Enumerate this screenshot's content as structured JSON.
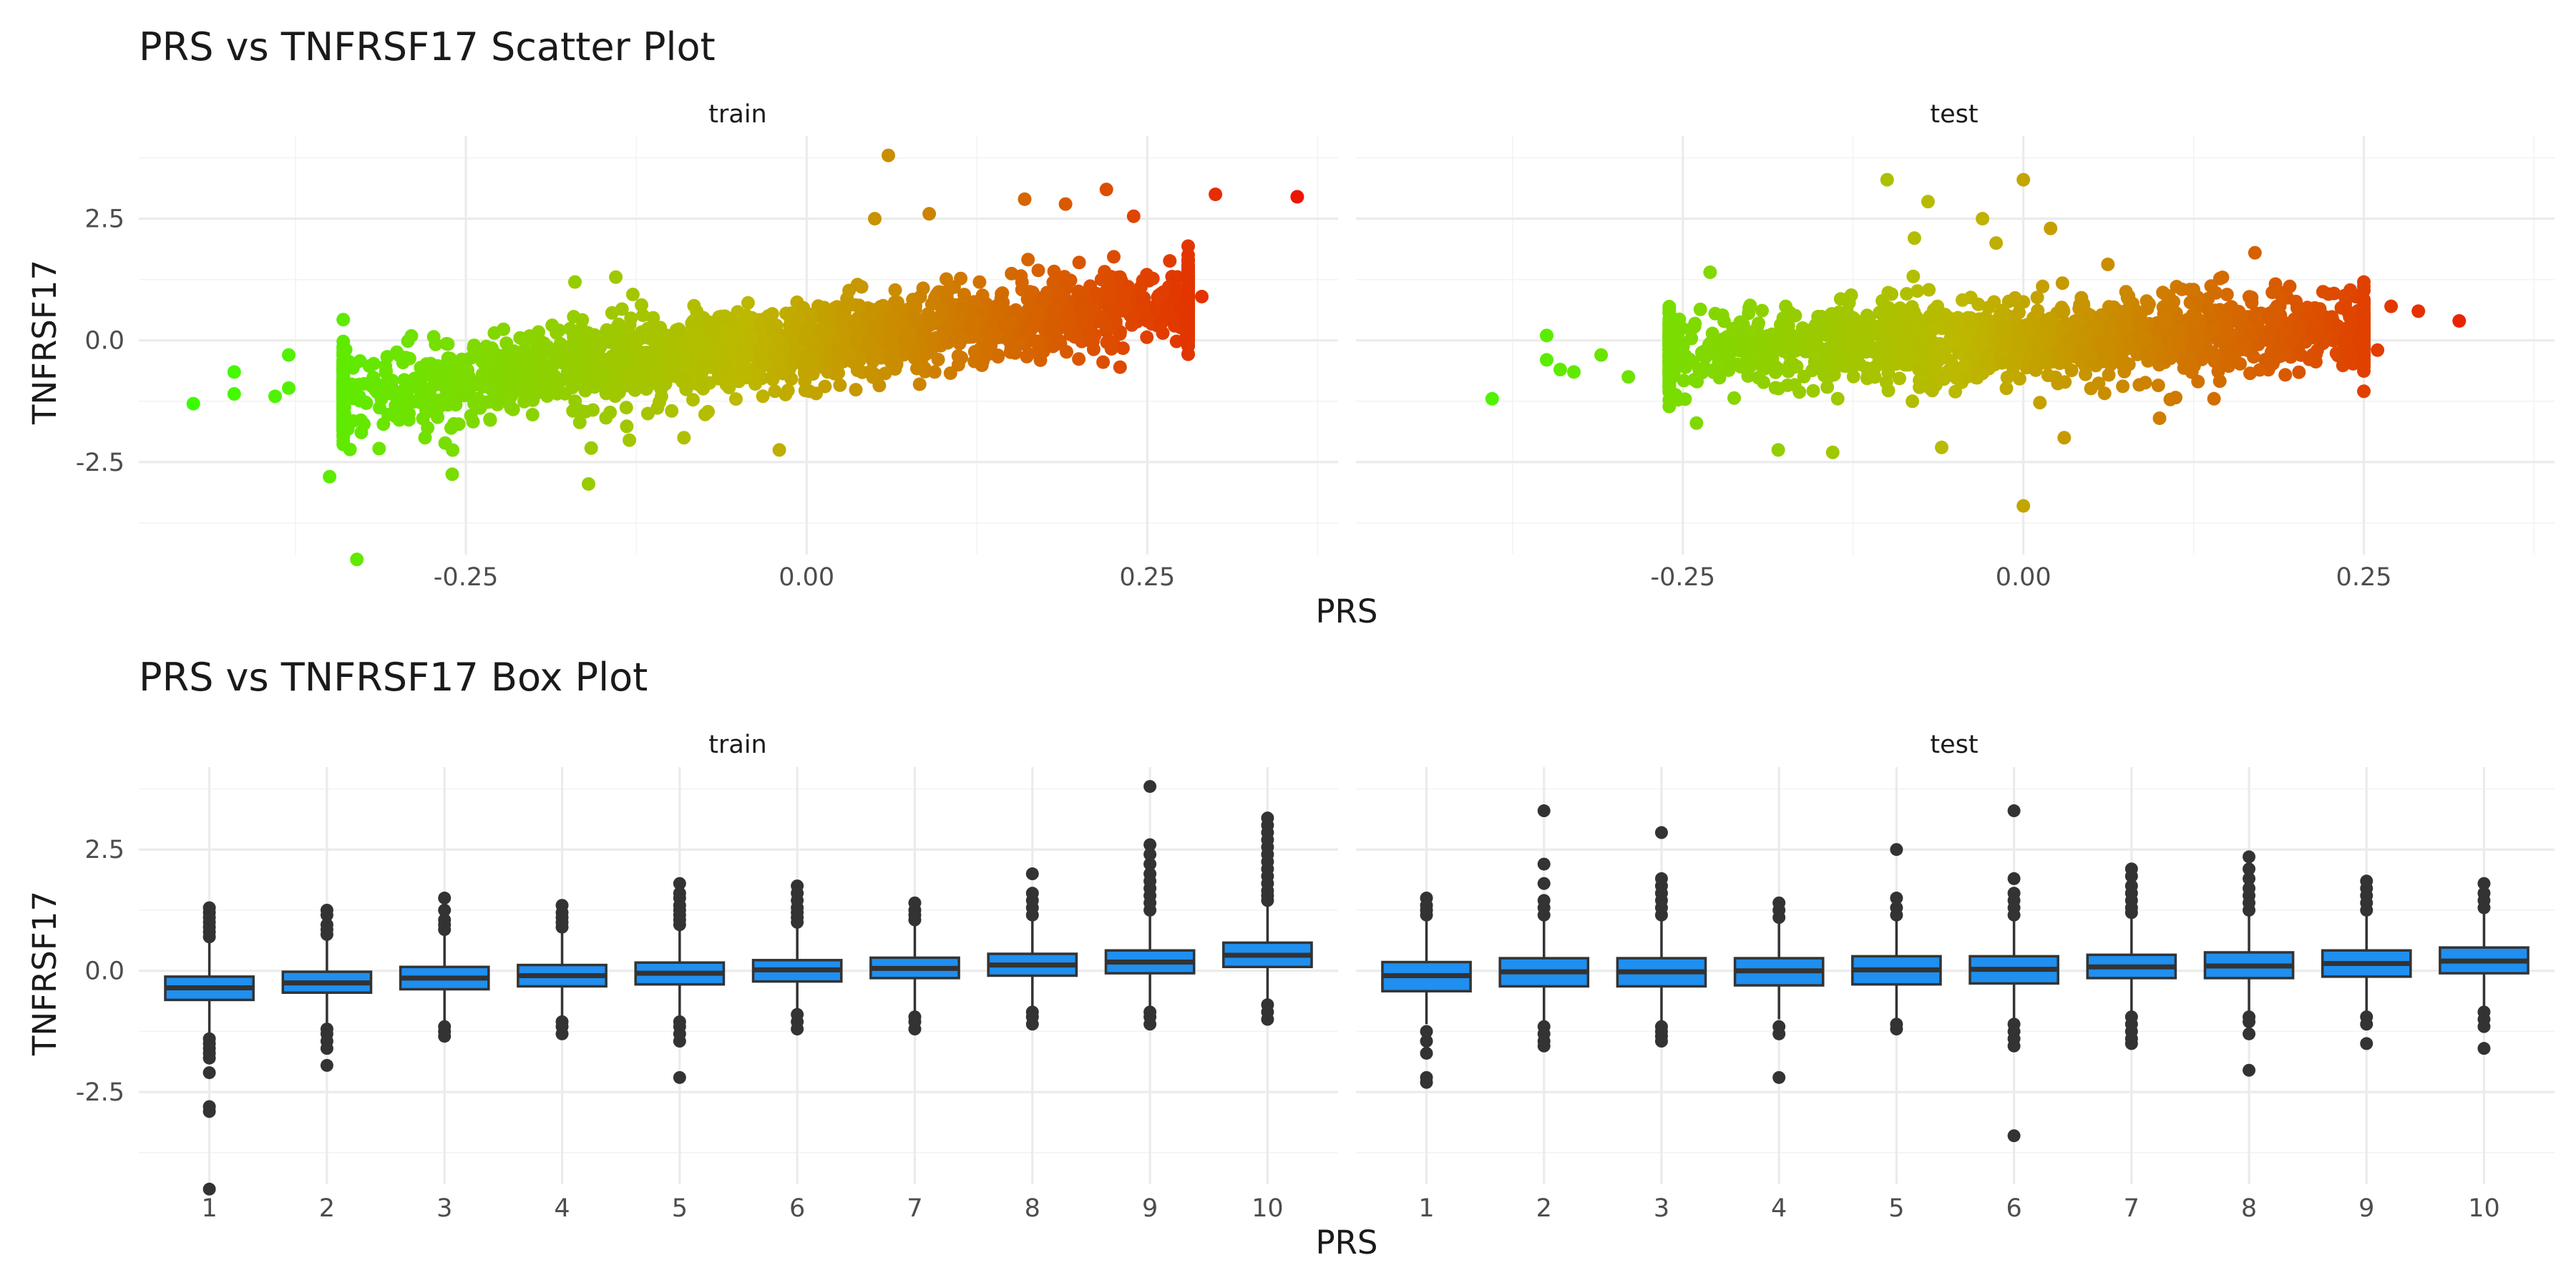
{
  "chart_data": [
    {
      "type": "scatter",
      "title": "PRS vs TNFRSF17 Scatter Plot",
      "xlabel": "PRS",
      "ylabel": "TNFRSF17",
      "color_scale": {
        "low": "#39ff00",
        "mid": "#bdb800",
        "high": "#ee1100"
      },
      "facets": [
        {
          "name": "train",
          "xlim": [
            -0.49,
            0.39
          ],
          "ylim": [
            -4.4,
            4.2
          ],
          "xticks": [
            -0.25,
            0.0,
            0.25
          ],
          "yticks": [
            -2.5,
            0.0,
            2.5
          ],
          "cloud": {
            "x_min": -0.34,
            "x_max": 0.28,
            "slope": 3.0,
            "intercept": -0.05,
            "spread": 0.42,
            "n": 2200
          },
          "points": [
            {
              "x": -0.45,
              "y": -1.3
            },
            {
              "x": -0.42,
              "y": -0.65
            },
            {
              "x": -0.42,
              "y": -1.1
            },
            {
              "x": -0.39,
              "y": -1.15
            },
            {
              "x": -0.38,
              "y": -0.98
            },
            {
              "x": -0.38,
              "y": -0.3
            },
            {
              "x": -0.33,
              "y": -4.5
            },
            {
              "x": -0.35,
              "y": -2.8
            },
            {
              "x": -0.26,
              "y": -2.75
            },
            {
              "x": -0.28,
              "y": -2.0
            },
            {
              "x": -0.16,
              "y": -2.95
            },
            {
              "x": -0.13,
              "y": -2.05
            },
            {
              "x": -0.09,
              "y": -2.0
            },
            {
              "x": -0.02,
              "y": -2.25
            },
            {
              "x": -0.17,
              "y": 1.2
            },
            {
              "x": -0.14,
              "y": 1.3
            },
            {
              "x": 0.06,
              "y": 3.8
            },
            {
              "x": 0.05,
              "y": 2.5
            },
            {
              "x": 0.09,
              "y": 2.6
            },
            {
              "x": 0.16,
              "y": 2.9
            },
            {
              "x": 0.19,
              "y": 2.8
            },
            {
              "x": 0.22,
              "y": 3.1
            },
            {
              "x": 0.24,
              "y": 2.55
            },
            {
              "x": 0.3,
              "y": 3.0
            },
            {
              "x": 0.36,
              "y": 2.95
            },
            {
              "x": 0.29,
              "y": 0.9
            },
            {
              "x": 0.28,
              "y": 0.7
            },
            {
              "x": 0.27,
              "y": 0.3
            },
            {
              "x": 0.25,
              "y": 0.4
            },
            {
              "x": 0.23,
              "y": -0.55
            },
            {
              "x": 0.2,
              "y": 1.6
            },
            {
              "x": 0.23,
              "y": 1.3
            }
          ]
        },
        {
          "name": "test",
          "xlim": [
            -0.49,
            0.39
          ],
          "ylim": [
            -4.4,
            4.2
          ],
          "xticks": [
            -0.25,
            0.0,
            0.25
          ],
          "yticks": [
            -2.5,
            0.0,
            2.5
          ],
          "cloud": {
            "x_min": -0.26,
            "x_max": 0.25,
            "slope": 0.9,
            "intercept": 0.0,
            "spread": 0.42,
            "n": 1500
          },
          "points": [
            {
              "x": -0.39,
              "y": -1.2
            },
            {
              "x": -0.35,
              "y": 0.1
            },
            {
              "x": -0.35,
              "y": -0.4
            },
            {
              "x": -0.34,
              "y": -0.6
            },
            {
              "x": -0.33,
              "y": -0.65
            },
            {
              "x": -0.31,
              "y": -0.3
            },
            {
              "x": -0.29,
              "y": -0.75
            },
            {
              "x": -0.24,
              "y": -1.7
            },
            {
              "x": -0.23,
              "y": 1.4
            },
            {
              "x": -0.18,
              "y": -2.25
            },
            {
              "x": -0.14,
              "y": -2.3
            },
            {
              "x": -0.1,
              "y": 3.3
            },
            {
              "x": -0.07,
              "y": 2.85
            },
            {
              "x": -0.08,
              "y": 2.1
            },
            {
              "x": -0.06,
              "y": -2.2
            },
            {
              "x": -0.03,
              "y": 2.5
            },
            {
              "x": -0.02,
              "y": 2.0
            },
            {
              "x": 0.0,
              "y": 3.3
            },
            {
              "x": 0.02,
              "y": 2.3
            },
            {
              "x": 0.0,
              "y": -3.4
            },
            {
              "x": 0.03,
              "y": -2.0
            },
            {
              "x": 0.1,
              "y": -1.6
            },
            {
              "x": 0.14,
              "y": -1.2
            },
            {
              "x": 0.17,
              "y": 1.8
            },
            {
              "x": 0.22,
              "y": 1.0
            },
            {
              "x": 0.25,
              "y": 1.2
            },
            {
              "x": 0.27,
              "y": 0.7
            },
            {
              "x": 0.29,
              "y": 0.6
            },
            {
              "x": 0.32,
              "y": 0.4
            },
            {
              "x": 0.24,
              "y": -0.4
            },
            {
              "x": 0.26,
              "y": -0.2
            }
          ]
        }
      ]
    },
    {
      "type": "box",
      "title": "PRS vs TNFRSF17 Box Plot",
      "xlabel": "PRS",
      "ylabel": "TNFRSF17",
      "box_color": "#1f8ff0",
      "categories": [
        "1",
        "2",
        "3",
        "4",
        "5",
        "6",
        "7",
        "8",
        "9",
        "10"
      ],
      "ylim": [
        -4.4,
        4.2
      ],
      "yticks": [
        -2.5,
        0.0,
        2.5
      ],
      "facets": [
        {
          "name": "train",
          "boxes": [
            {
              "q1": -0.6,
              "median": -0.35,
              "q3": -0.12,
              "whisker_low": -1.3,
              "whisker_high": 0.6,
              "outliers": [
                -1.4,
                -1.5,
                -1.6,
                -1.7,
                -1.8,
                -2.1,
                -2.8,
                -2.9,
                -4.5,
                0.7,
                0.8,
                0.9,
                1.0,
                1.1,
                1.2,
                1.3
              ]
            },
            {
              "q1": -0.45,
              "median": -0.25,
              "q3": -0.02,
              "whisker_low": -1.1,
              "whisker_high": 0.65,
              "outliers": [
                -1.2,
                -1.3,
                -1.45,
                -1.6,
                -1.95,
                0.75,
                0.85,
                0.95,
                1.15,
                1.25
              ]
            },
            {
              "q1": -0.38,
              "median": -0.15,
              "q3": 0.08,
              "whisker_low": -1.05,
              "whisker_high": 0.75,
              "outliers": [
                -1.15,
                -1.25,
                -1.35,
                0.85,
                0.95,
                1.05,
                1.25,
                1.5
              ]
            },
            {
              "q1": -0.32,
              "median": -0.1,
              "q3": 0.12,
              "whisker_low": -0.95,
              "whisker_high": 0.8,
              "outliers": [
                -1.05,
                -1.15,
                -1.3,
                0.9,
                1.0,
                1.1,
                1.2,
                1.35
              ]
            },
            {
              "q1": -0.28,
              "median": -0.05,
              "q3": 0.17,
              "whisker_low": -0.95,
              "whisker_high": 0.85,
              "outliers": [
                -1.05,
                -1.15,
                -1.3,
                -1.45,
                -2.2,
                0.95,
                1.05,
                1.15,
                1.25,
                1.35,
                1.5,
                1.6,
                1.8
              ]
            },
            {
              "q1": -0.22,
              "median": 0.02,
              "q3": 0.22,
              "whisker_low": -0.8,
              "whisker_high": 0.9,
              "outliers": [
                -0.9,
                -1.05,
                -1.2,
                1.0,
                1.1,
                1.2,
                1.3,
                1.45,
                1.6,
                1.75
              ]
            },
            {
              "q1": -0.15,
              "median": 0.05,
              "q3": 0.27,
              "whisker_low": -0.85,
              "whisker_high": 0.95,
              "outliers": [
                -0.95,
                -1.05,
                -1.2,
                1.05,
                1.15,
                1.25,
                1.4
              ]
            },
            {
              "q1": -0.1,
              "median": 0.12,
              "q3": 0.35,
              "whisker_low": -0.75,
              "whisker_high": 1.05,
              "outliers": [
                -0.85,
                -0.95,
                -1.1,
                1.15,
                1.3,
                1.45,
                1.6,
                2.0
              ]
            },
            {
              "q1": -0.05,
              "median": 0.18,
              "q3": 0.42,
              "whisker_low": -0.75,
              "whisker_high": 1.15,
              "outliers": [
                -0.85,
                -0.95,
                -1.1,
                1.25,
                1.4,
                1.55,
                1.7,
                1.85,
                2.0,
                2.2,
                2.4,
                2.6,
                3.8
              ]
            },
            {
              "q1": 0.08,
              "median": 0.32,
              "q3": 0.58,
              "whisker_low": -0.6,
              "whisker_high": 1.35,
              "outliers": [
                -0.7,
                -0.85,
                -1.0,
                1.45,
                1.55,
                1.65,
                1.8,
                1.95,
                2.1,
                2.25,
                2.4,
                2.55,
                2.7,
                2.85,
                3.0,
                3.15
              ]
            }
          ]
        },
        {
          "name": "test",
          "boxes": [
            {
              "q1": -0.42,
              "median": -0.1,
              "q3": 0.18,
              "whisker_low": -1.1,
              "whisker_high": 1.05,
              "outliers": [
                -1.25,
                -1.45,
                -1.7,
                -2.2,
                -2.3,
                1.15,
                1.25,
                1.35,
                1.5
              ]
            },
            {
              "q1": -0.32,
              "median": -0.02,
              "q3": 0.26,
              "whisker_low": -1.05,
              "whisker_high": 1.05,
              "outliers": [
                -1.15,
                -1.3,
                -1.45,
                -1.55,
                1.15,
                1.3,
                1.45,
                1.8,
                2.2,
                3.3
              ]
            },
            {
              "q1": -0.32,
              "median": -0.02,
              "q3": 0.26,
              "whisker_low": -1.05,
              "whisker_high": 1.05,
              "outliers": [
                -1.15,
                -1.25,
                -1.35,
                -1.45,
                1.15,
                1.3,
                1.45,
                1.6,
                1.75,
                1.9,
                2.85
              ]
            },
            {
              "q1": -0.3,
              "median": 0.0,
              "q3": 0.26,
              "whisker_low": -1.0,
              "whisker_high": 1.0,
              "outliers": [
                -1.15,
                -1.3,
                -2.2,
                1.1,
                1.25,
                1.4
              ]
            },
            {
              "q1": -0.28,
              "median": 0.02,
              "q3": 0.3,
              "whisker_low": -1.0,
              "whisker_high": 1.05,
              "outliers": [
                -1.1,
                -1.2,
                1.15,
                1.3,
                1.5,
                2.5
              ]
            },
            {
              "q1": -0.26,
              "median": 0.03,
              "q3": 0.3,
              "whisker_low": -1.0,
              "whisker_high": 1.05,
              "outliers": [
                -1.1,
                -1.25,
                -1.4,
                -1.55,
                -3.4,
                1.15,
                1.3,
                1.45,
                1.6,
                1.9,
                3.3
              ]
            },
            {
              "q1": -0.15,
              "median": 0.08,
              "q3": 0.33,
              "whisker_low": -0.85,
              "whisker_high": 1.1,
              "outliers": [
                -0.95,
                -1.1,
                -1.25,
                -1.4,
                -1.5,
                1.2,
                1.3,
                1.45,
                1.6,
                1.75,
                1.95,
                2.1
              ]
            },
            {
              "q1": -0.15,
              "median": 0.1,
              "q3": 0.38,
              "whisker_low": -0.85,
              "whisker_high": 1.15,
              "outliers": [
                -0.95,
                -1.05,
                -1.3,
                -2.05,
                1.25,
                1.4,
                1.55,
                1.7,
                1.9,
                2.1,
                2.35
              ]
            },
            {
              "q1": -0.12,
              "median": 0.15,
              "q3": 0.42,
              "whisker_low": -0.85,
              "whisker_high": 1.15,
              "outliers": [
                -0.95,
                -1.1,
                -1.5,
                1.25,
                1.4,
                1.55,
                1.7,
                1.85
              ]
            },
            {
              "q1": -0.05,
              "median": 0.2,
              "q3": 0.48,
              "whisker_low": -0.75,
              "whisker_high": 1.2,
              "outliers": [
                -0.85,
                -1.0,
                -1.15,
                -1.6,
                1.3,
                1.45,
                1.6,
                1.8
              ]
            }
          ]
        }
      ]
    }
  ]
}
